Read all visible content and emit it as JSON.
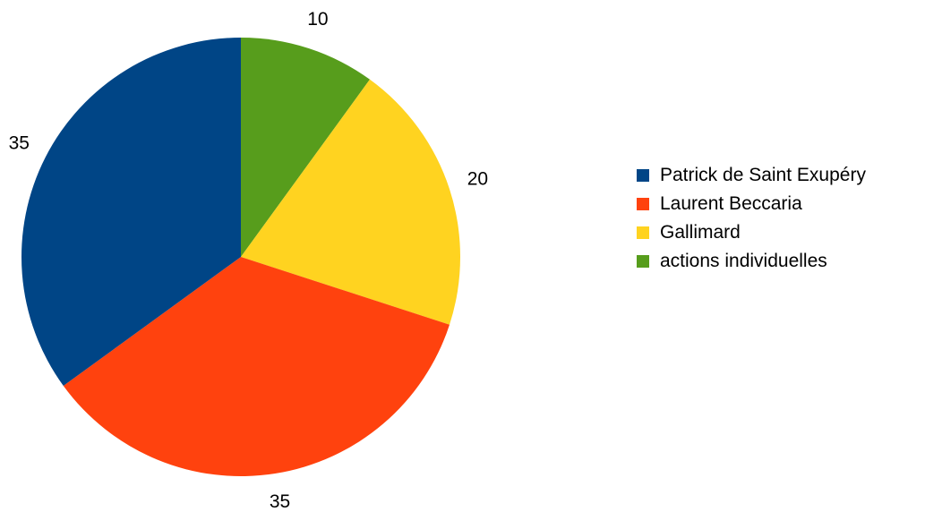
{
  "chart_data": {
    "type": "pie",
    "title": "",
    "start_angle_deg": 0,
    "direction": "clockwise",
    "legend_position": "right",
    "series": [
      {
        "name": "Patrick de Saint Exupéry",
        "value": 35,
        "label": "35",
        "color": "#004586"
      },
      {
        "name": "Laurent Beccaria",
        "value": 35,
        "label": "35",
        "color": "#ff420e"
      },
      {
        "name": "Gallimard",
        "value": 20,
        "label": "20",
        "color": "#ffd320"
      },
      {
        "name": "actions individuelles",
        "value": 10,
        "label": "10",
        "color": "#579d1c"
      }
    ],
    "slice_draw_order": [
      3,
      2,
      1,
      0
    ]
  }
}
